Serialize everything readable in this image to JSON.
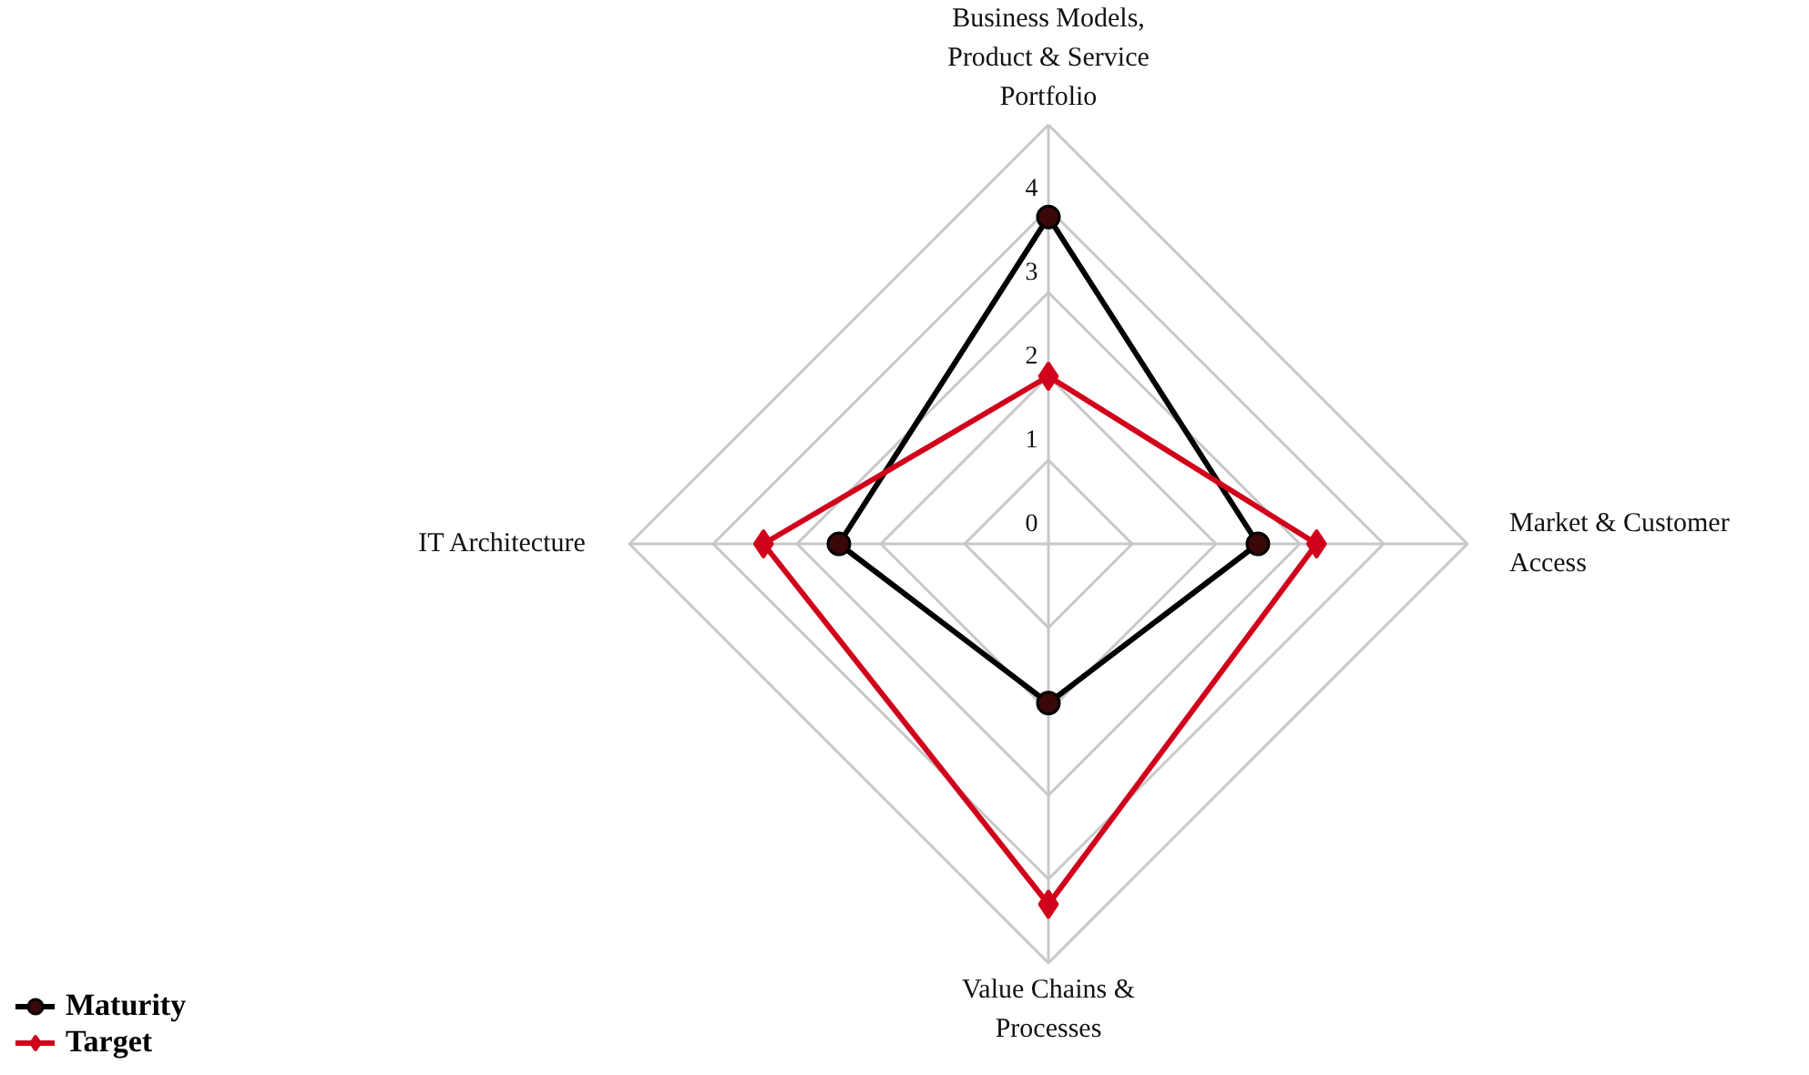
{
  "chart_data": {
    "type": "radar",
    "categories": [
      "Business Models, Product & Service Portfolio",
      "Market & Customer Access",
      "Value Chains & Processes",
      "IT Architecture"
    ],
    "series": [
      {
        "name": "Maturity",
        "color": "#000000",
        "marker": "circle",
        "values": [
          3.9,
          2.5,
          1.9,
          2.5
        ]
      },
      {
        "name": "Target",
        "color": "#d0021b",
        "marker": "diamond",
        "values": [
          2.0,
          3.2,
          4.3,
          3.4
        ]
      }
    ],
    "ylim": [
      0,
      5
    ],
    "yticks": [
      0,
      1,
      2,
      3,
      4
    ],
    "grid": true,
    "legend": "bottom left",
    "line_style": "solid"
  }
}
